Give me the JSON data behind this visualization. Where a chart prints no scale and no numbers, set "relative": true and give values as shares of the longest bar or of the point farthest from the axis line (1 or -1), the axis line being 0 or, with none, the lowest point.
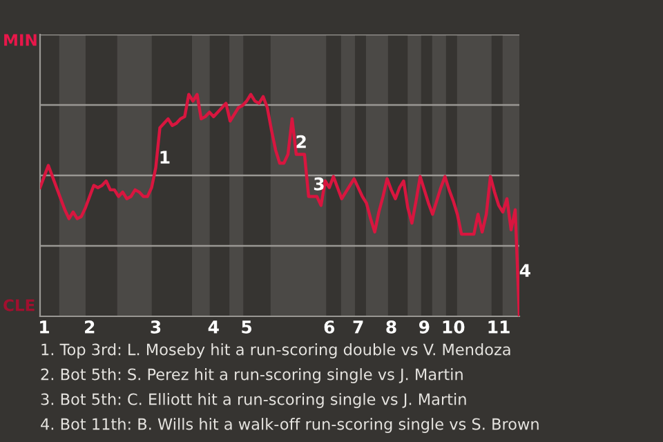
{
  "chart_data": {
    "type": "line",
    "relative": true,
    "categories": [
      null,
      "1",
      null,
      null,
      null,
      null,
      null,
      null,
      null,
      null,
      null,
      null,
      "2",
      null,
      null,
      null,
      null,
      null,
      null,
      null,
      null,
      null,
      null,
      null,
      null,
      null,
      null,
      null,
      "3",
      null,
      null,
      null,
      null,
      null,
      null,
      null,
      null,
      null,
      null,
      null,
      null,
      null,
      "4",
      null,
      null,
      null,
      null,
      null,
      null,
      null,
      "5",
      null,
      null,
      null,
      null,
      null,
      null,
      null,
      null,
      null,
      null,
      null,
      null,
      null,
      null,
      null,
      null,
      null,
      null,
      null,
      "6",
      null,
      null,
      null,
      null,
      null,
      null,
      "7",
      null,
      null,
      null,
      null,
      null,
      null,
      null,
      "8",
      null,
      null,
      null,
      null,
      null,
      null,
      null,
      "9",
      null,
      null,
      null,
      null,
      null,
      null,
      "10",
      null,
      null,
      null,
      null,
      null,
      null,
      null,
      null,
      null,
      null,
      "11",
      null,
      null,
      null,
      null,
      null
    ],
    "series": [
      {
        "color": "#d8163f",
        "values": [
          0.58,
          0.63,
          0.68,
          0.63,
          0.58,
          0.53,
          0.48,
          0.44,
          0.47,
          0.44,
          0.45,
          0.49,
          0.54,
          0.59,
          0.58,
          0.59,
          0.61,
          0.57,
          0.57,
          0.54,
          0.56,
          0.53,
          0.54,
          0.57,
          0.56,
          0.54,
          0.54,
          0.58,
          0.67,
          0.85,
          0.87,
          0.89,
          0.86,
          0.87,
          0.89,
          0.9,
          1,
          0.97,
          1,
          0.89,
          0.9,
          0.92,
          0.9,
          0.92,
          0.94,
          0.96,
          0.88,
          0.91,
          0.94,
          0.95,
          0.97,
          1,
          0.97,
          0.96,
          0.99,
          0.94,
          0.84,
          0.75,
          0.69,
          0.69,
          0.73,
          0.89,
          0.73,
          0.73,
          0.73,
          0.54,
          0.54,
          0.54,
          0.5,
          0.61,
          0.58,
          0.63,
          0.58,
          0.53,
          0.56,
          0.59,
          0.62,
          0.58,
          0.54,
          0.51,
          0.44,
          0.38,
          0.47,
          0.54,
          0.62,
          0.57,
          0.53,
          0.58,
          0.61,
          0.49,
          0.42,
          0.52,
          0.63,
          0.57,
          0.51,
          0.46,
          0.52,
          0.58,
          0.63,
          0.57,
          0.52,
          0.46,
          0.37,
          0.37,
          0.37,
          0.37,
          0.46,
          0.38,
          0.46,
          0.63,
          0.56,
          0.5,
          0.47,
          0.53,
          0.39,
          0.48,
          0
        ]
      }
    ],
    "grid": "y",
    "annotations": [
      "MIN",
      "CLE",
      {
        "text": "1",
        "y": 0.71
      },
      {
        "text": "2",
        "y": 0.78
      },
      {
        "text": "3",
        "y": 0.59
      },
      {
        "text": "4",
        "y": 0.2
      },
      "1. Top 3rd: L. Moseby hit a run-scoring double vs V. Mendoza",
      "2. Bot 5th: S. Perez hit a run-scoring single vs J. Martin",
      "3. Bot 5th: C. Elliott hit a run-scoring single vs J. Martin",
      "4. Bot 11th: B. Wills hit a walk-off run-scoring single vs S. Brown"
    ],
    "marker": "none",
    "line_style": "solid",
    "legend": false
  }
}
